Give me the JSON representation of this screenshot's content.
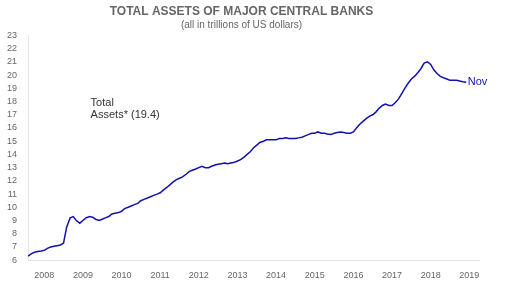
{
  "chart_data": {
    "type": "line",
    "title": "TOTAL ASSETS OF MAJOR CENTRAL BANKS",
    "subtitle": "(all in trillions of US dollars)",
    "color": "#1212aa",
    "grid": false,
    "x": [
      2007.58,
      2007.67,
      2007.75,
      2007.83,
      2007.92,
      2008.0,
      2008.08,
      2008.17,
      2008.25,
      2008.33,
      2008.42,
      2008.5,
      2008.58,
      2008.67,
      2008.75,
      2008.83,
      2008.92,
      2009.0,
      2009.08,
      2009.17,
      2009.25,
      2009.33,
      2009.42,
      2009.5,
      2009.58,
      2009.67,
      2009.75,
      2009.83,
      2009.92,
      2010.0,
      2010.08,
      2010.17,
      2010.25,
      2010.33,
      2010.42,
      2010.5,
      2010.58,
      2010.67,
      2010.75,
      2010.83,
      2010.92,
      2011.0,
      2011.08,
      2011.17,
      2011.25,
      2011.33,
      2011.42,
      2011.5,
      2011.58,
      2011.67,
      2011.75,
      2011.83,
      2011.92,
      2012.0,
      2012.08,
      2012.17,
      2012.25,
      2012.33,
      2012.42,
      2012.5,
      2012.58,
      2012.67,
      2012.75,
      2012.83,
      2012.92,
      2013.0,
      2013.08,
      2013.17,
      2013.25,
      2013.33,
      2013.42,
      2013.5,
      2013.58,
      2013.67,
      2013.75,
      2013.83,
      2013.92,
      2014.0,
      2014.08,
      2014.17,
      2014.25,
      2014.33,
      2014.42,
      2014.5,
      2014.58,
      2014.67,
      2014.75,
      2014.83,
      2014.92,
      2015.0,
      2015.08,
      2015.17,
      2015.25,
      2015.33,
      2015.42,
      2015.5,
      2015.58,
      2015.67,
      2015.75,
      2015.83,
      2015.92,
      2016.0,
      2016.08,
      2016.17,
      2016.25,
      2016.33,
      2016.42,
      2016.5,
      2016.58,
      2016.67,
      2016.75,
      2016.83,
      2016.92,
      2017.0,
      2017.08,
      2017.17,
      2017.25,
      2017.33,
      2017.42,
      2017.5,
      2017.58,
      2017.67,
      2017.75,
      2017.83,
      2017.92,
      2018.0,
      2018.08,
      2018.17,
      2018.25,
      2018.33,
      2018.42,
      2018.5,
      2018.58,
      2018.67,
      2018.75,
      2018.83,
      2018.92
    ],
    "values": [
      6.3,
      6.5,
      6.6,
      6.65,
      6.7,
      6.75,
      6.9,
      7.0,
      7.05,
      7.1,
      7.15,
      7.3,
      8.5,
      9.2,
      9.3,
      9.0,
      8.8,
      9.0,
      9.2,
      9.3,
      9.25,
      9.1,
      9.0,
      9.1,
      9.2,
      9.3,
      9.5,
      9.55,
      9.6,
      9.7,
      9.9,
      10.0,
      10.1,
      10.2,
      10.3,
      10.5,
      10.6,
      10.7,
      10.8,
      10.9,
      11.0,
      11.1,
      11.3,
      11.5,
      11.7,
      11.9,
      12.1,
      12.2,
      12.3,
      12.5,
      12.7,
      12.8,
      12.9,
      13.0,
      13.1,
      13.0,
      13.0,
      13.1,
      13.2,
      13.25,
      13.3,
      13.35,
      13.3,
      13.35,
      13.4,
      13.5,
      13.6,
      13.8,
      14.0,
      14.2,
      14.5,
      14.7,
      14.9,
      15.0,
      15.1,
      15.1,
      15.1,
      15.1,
      15.2,
      15.2,
      15.25,
      15.2,
      15.2,
      15.2,
      15.25,
      15.3,
      15.4,
      15.5,
      15.6,
      15.6,
      15.7,
      15.6,
      15.6,
      15.55,
      15.5,
      15.6,
      15.65,
      15.7,
      15.65,
      15.6,
      15.6,
      15.7,
      16.0,
      16.3,
      16.5,
      16.7,
      16.9,
      17.0,
      17.2,
      17.5,
      17.7,
      17.8,
      17.7,
      17.7,
      17.9,
      18.2,
      18.6,
      19.0,
      19.4,
      19.7,
      19.9,
      20.2,
      20.5,
      20.9,
      21.0,
      20.8,
      20.4,
      20.1,
      19.9,
      19.8,
      19.7,
      19.6,
      19.6,
      19.6,
      19.55,
      19.5,
      19.45
    ],
    "xlim": [
      2007.58,
      2019.25
    ],
    "xticks": [
      2008,
      2009,
      2010,
      2011,
      2012,
      2013,
      2014,
      2015,
      2016,
      2017,
      2018,
      2019
    ],
    "ylim": [
      6,
      23
    ],
    "yticks": [
      6,
      7,
      8,
      9,
      10,
      11,
      12,
      13,
      14,
      15,
      16,
      17,
      18,
      19,
      20,
      21,
      22,
      23
    ],
    "annotations": [
      {
        "text": "Total",
        "x": 2009.2,
        "y": 17.5
      },
      {
        "text": "Assets* (19.4)",
        "x": 2009.2,
        "y": 16.6
      },
      {
        "text": "Nov",
        "x": 2018.96,
        "y": 19.5,
        "color": "#1212aa"
      }
    ]
  }
}
